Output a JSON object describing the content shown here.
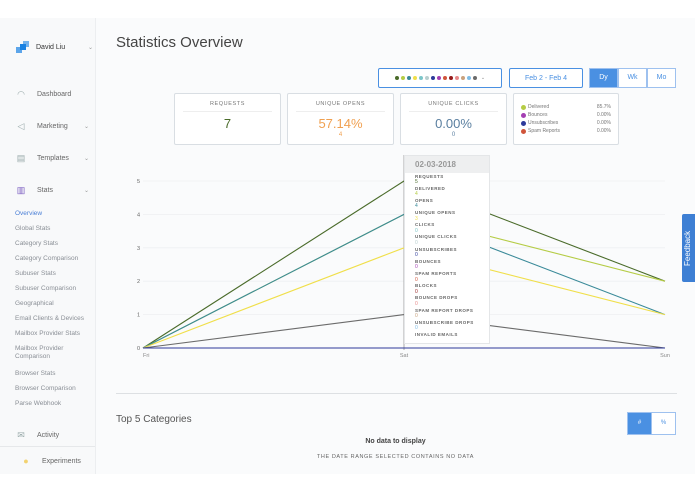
{
  "user": {
    "name": "David Liu"
  },
  "nav": [
    {
      "label": "Dashboard",
      "icon": "gauge-icon"
    },
    {
      "label": "Marketing",
      "icon": "megaphone-icon"
    },
    {
      "label": "Templates",
      "icon": "template-icon"
    },
    {
      "label": "Stats",
      "icon": "bar-chart-icon"
    }
  ],
  "stats_sub": [
    "Overview",
    "Global Stats",
    "Category Stats",
    "Category Comparison",
    "Subuser Stats",
    "Subuser Comparison",
    "Geographical",
    "Email Clients & Devices",
    "Mailbox Provider Stats",
    "Mailbox Provider Comparison",
    "Browser Stats",
    "Browser Comparison",
    "Parse Webhook"
  ],
  "nav_bottom": [
    {
      "label": "Activity",
      "icon": "mail-search-icon"
    },
    {
      "label": "Experiments",
      "icon": "lightbulb-icon"
    }
  ],
  "page_title": "Statistics Overview",
  "color_filter": [
    "#4a6b2a",
    "#b5cc45",
    "#3a8a99",
    "#f0df4a",
    "#7cc6c9",
    "#b9cfcf",
    "#2d3a9a",
    "#a43fb3",
    "#d0543a",
    "#961c1c",
    "#e88a8a",
    "#c9a27e",
    "#7fbde6",
    "#6b6b6b"
  ],
  "date_range": "Feb 2 - Feb 4",
  "granularity": {
    "options": [
      "Dy",
      "Wk",
      "Mo"
    ],
    "selected": "Dy"
  },
  "cards": [
    {
      "title": "REQUESTS",
      "value": "7",
      "sub": "",
      "color": "#4a6b2a"
    },
    {
      "title": "UNIQUE OPENS",
      "value": "57.14%",
      "sub": "4",
      "color": "#f0a050"
    },
    {
      "title": "UNIQUE CLICKS",
      "value": "0.00%",
      "sub": "0",
      "color": "#5a7fa0"
    }
  ],
  "legend": [
    {
      "label": "Delivered",
      "value": "85.7%",
      "color": "#b5cc45"
    },
    {
      "label": "Bounces",
      "value": "0.00%",
      "color": "#a43fb3"
    },
    {
      "label": "Unsubscribes",
      "value": "0.00%",
      "color": "#2d3a9a"
    },
    {
      "label": "Spam Reports",
      "value": "0.00%",
      "color": "#d0543a"
    }
  ],
  "chart_data": {
    "type": "line",
    "x": [
      "Fri",
      "Sat",
      "Sun"
    ],
    "ylim": [
      0,
      5
    ],
    "yticks": [
      "0",
      "1",
      "2",
      "3",
      "4",
      "5"
    ],
    "grid": true,
    "series": [
      {
        "values": [
          0,
          5,
          2
        ],
        "color": "#4a6b2a"
      },
      {
        "values": [
          0,
          4,
          2
        ],
        "color": "#b5cc45"
      },
      {
        "values": [
          0,
          4,
          1
        ],
        "color": "#3a8a99"
      },
      {
        "values": [
          0,
          3,
          1
        ],
        "color": "#f0df4a"
      },
      {
        "values": [
          0,
          1,
          0
        ],
        "color": "#6b6b6b"
      },
      {
        "values": [
          0,
          0,
          0
        ],
        "color": "#2d3a9a"
      }
    ]
  },
  "tooltip": {
    "date": "02-03-2018",
    "rows": [
      {
        "k": "REQUESTS",
        "v": "5",
        "c": "#4a6b2a"
      },
      {
        "k": "DELIVERED",
        "v": "4",
        "c": "#b5cc45"
      },
      {
        "k": "OPENS",
        "v": "4",
        "c": "#3a8a99"
      },
      {
        "k": "UNIQUE OPENS",
        "v": "3",
        "c": "#f0df4a"
      },
      {
        "k": "CLICKS",
        "v": "0",
        "c": "#7cc6c9"
      },
      {
        "k": "UNIQUE CLICKS",
        "v": "0",
        "c": "#b9cfcf"
      },
      {
        "k": "UNSUBSCRIBES",
        "v": "0",
        "c": "#2d3a9a"
      },
      {
        "k": "BOUNCES",
        "v": "0",
        "c": "#a43fb3"
      },
      {
        "k": "SPAM REPORTS",
        "v": "0",
        "c": "#d0543a"
      },
      {
        "k": "BLOCKS",
        "v": "0",
        "c": "#961c1c"
      },
      {
        "k": "BOUNCE DROPS",
        "v": "0",
        "c": "#e88a8a"
      },
      {
        "k": "SPAM REPORT DROPS",
        "v": "0",
        "c": "#c9a27e"
      },
      {
        "k": "UNSUBSCRIBE DROPS",
        "v": "0",
        "c": "#7fbde6"
      },
      {
        "k": "INVALID EMAILS",
        "v": "",
        "c": "#6b6b6b"
      }
    ]
  },
  "categories": {
    "title": "Top 5 Categories",
    "toggle": [
      "#",
      "%"
    ],
    "empty_title": "No data to display",
    "empty_sub": "THE DATE RANGE SELECTED CONTAINS NO DATA"
  },
  "feedback": "Feedback"
}
